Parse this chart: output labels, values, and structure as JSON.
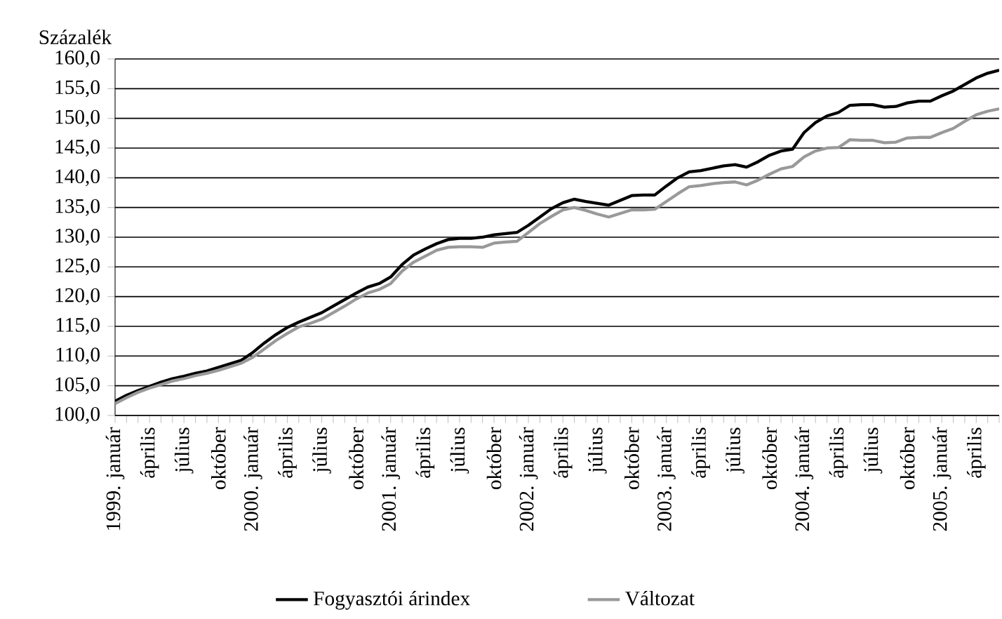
{
  "chart_data": {
    "type": "line",
    "ylabel": "Százalék",
    "categories": [
      "1999. január",
      null,
      null,
      "április",
      null,
      null,
      "július",
      null,
      null,
      "október",
      null,
      null,
      "2000. január",
      null,
      null,
      "április",
      null,
      null,
      "július",
      null,
      null,
      "október",
      null,
      null,
      "2001. január",
      null,
      null,
      "április",
      null,
      null,
      "július",
      null,
      null,
      "október",
      null,
      null,
      "2002. január",
      null,
      null,
      "április",
      null,
      null,
      "július",
      null,
      null,
      "október",
      null,
      null,
      "2003. január",
      null,
      null,
      "április",
      null,
      null,
      "július",
      null,
      null,
      "október",
      null,
      null,
      "2004. január",
      null,
      null,
      "április",
      null,
      null,
      "július",
      null,
      null,
      "október",
      null,
      null,
      "2005. január",
      null,
      null,
      "április",
      null,
      null
    ],
    "series": [
      {
        "name": "Fogyasztói árindex",
        "color": "#000000",
        "values": [
          102.4,
          103.4,
          104.2,
          104.9,
          105.6,
          106.2,
          106.6,
          107.1,
          107.5,
          108.1,
          108.7,
          109.3,
          110.6,
          112.2,
          113.6,
          114.8,
          115.7,
          116.5,
          117.3,
          118.4,
          119.5,
          120.6,
          121.6,
          122.2,
          123.3,
          125.4,
          127.0,
          128.0,
          128.9,
          129.6,
          129.8,
          129.8,
          130.0,
          130.4,
          130.6,
          130.8,
          132.0,
          133.4,
          134.8,
          135.8,
          136.4,
          136.0,
          135.7,
          135.4,
          136.2,
          137.0,
          137.1,
          137.1,
          138.6,
          140.0,
          141.0,
          141.2,
          141.6,
          142.0,
          142.2,
          141.8,
          142.7,
          143.8,
          144.5,
          144.8,
          147.6,
          149.3,
          150.4,
          151.0,
          152.2,
          152.3,
          152.3,
          151.9,
          152.0,
          152.6,
          152.9,
          152.9,
          153.8,
          154.6,
          155.7,
          156.8,
          157.6,
          158.1
        ]
      },
      {
        "name": "Változat",
        "color": "#999999",
        "values": [
          102.0,
          103.0,
          103.9,
          104.6,
          105.2,
          105.8,
          106.2,
          106.7,
          107.1,
          107.6,
          108.2,
          108.8,
          109.8,
          111.2,
          112.6,
          113.8,
          114.9,
          115.5,
          116.2,
          117.3,
          118.4,
          119.6,
          120.6,
          121.2,
          122.2,
          124.3,
          125.8,
          126.8,
          127.8,
          128.3,
          128.4,
          128.4,
          128.3,
          129.0,
          129.2,
          129.3,
          130.8,
          132.3,
          133.5,
          134.6,
          135.0,
          134.5,
          133.9,
          133.4,
          134.0,
          134.6,
          134.6,
          134.7,
          136.0,
          137.3,
          138.5,
          138.7,
          139.0,
          139.2,
          139.3,
          138.8,
          139.6,
          140.6,
          141.5,
          141.9,
          143.5,
          144.5,
          145.0,
          145.1,
          146.4,
          146.3,
          146.3,
          145.9,
          146.0,
          146.7,
          146.8,
          146.8,
          147.6,
          148.3,
          149.5,
          150.6,
          151.2,
          151.6
        ]
      }
    ],
    "ylim": [
      100,
      160
    ],
    "yticks": [
      {
        "value": 100,
        "label": "100,0"
      },
      {
        "value": 105,
        "label": "105,0"
      },
      {
        "value": 110,
        "label": "110,0"
      },
      {
        "value": 115,
        "label": "115,0"
      },
      {
        "value": 120,
        "label": "120,0"
      },
      {
        "value": 125,
        "label": "125,0"
      },
      {
        "value": 130,
        "label": "130,0"
      },
      {
        "value": 135,
        "label": "135,0"
      },
      {
        "value": 140,
        "label": "140,0"
      },
      {
        "value": 145,
        "label": "145,0"
      },
      {
        "value": 150,
        "label": "150,0"
      },
      {
        "value": 155,
        "label": "155,0"
      },
      {
        "value": 160,
        "label": "160,0"
      }
    ],
    "grid": "y",
    "legend": "bottom",
    "marker": "none",
    "line_style": "solid"
  }
}
